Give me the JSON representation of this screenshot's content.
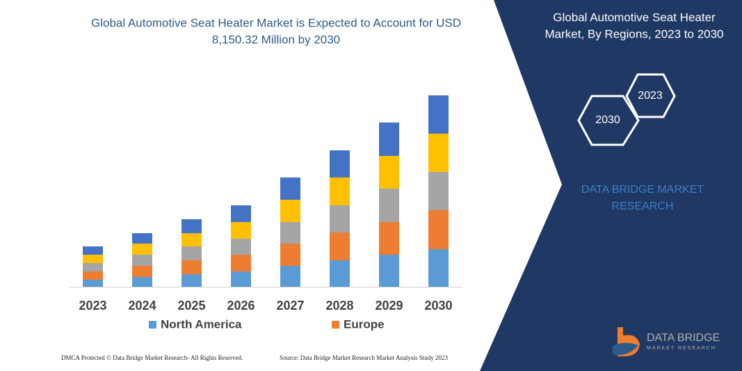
{
  "chart_data": {
    "type": "bar",
    "stacked": true,
    "title": [
      "Global Automotive Seat Heater Market is Expected to Account for USD",
      "8,150.32 Million by 2030"
    ],
    "categories": [
      "2023",
      "2024",
      "2025",
      "2026",
      "2027",
      "2028",
      "2029",
      "2030"
    ],
    "series": [
      {
        "name": "North America",
        "color": "#5b9bd5",
        "values": [
          10,
          14,
          18,
          22,
          30,
          38,
          46,
          54
        ]
      },
      {
        "name": "Europe",
        "color": "#ed7d31",
        "values": [
          12,
          16,
          20,
          24,
          32,
          40,
          47,
          56
        ]
      },
      {
        "color": "#a5a5a5",
        "values": [
          12,
          16,
          20,
          23,
          31,
          39,
          48,
          55
        ]
      },
      {
        "color": "#ffc000",
        "values": [
          12,
          16,
          19,
          24,
          32,
          40,
          47,
          55
        ]
      },
      {
        "color": "#4472c4",
        "values": [
          12,
          15,
          20,
          24,
          32,
          39,
          48,
          55
        ]
      }
    ]
  },
  "panel": {
    "title": [
      "Global Automotive Seat Heater",
      "Market, By Regions, 2023 to 2030"
    ],
    "hexagons": [
      "2023",
      "2030"
    ],
    "brand": [
      "DATA BRIDGE MARKET",
      "RESEARCH"
    ]
  },
  "logo": {
    "name": "DATA BRIDGE",
    "tagline": "MARKET RESEARCH"
  },
  "footer": {
    "left": "DMCA Protected © Data Bridge Market Research-  All Rights Reserved.",
    "right": "Source: Data Bridge Market Research  Market Analysis Study 2023"
  }
}
